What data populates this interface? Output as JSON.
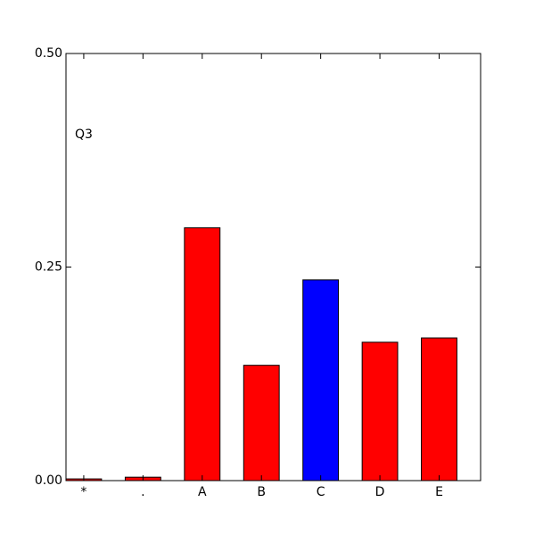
{
  "chart_data": {
    "type": "bar",
    "annotation": "Q3",
    "categories": [
      "*",
      ".",
      "A",
      "B",
      "C",
      "D",
      "E"
    ],
    "values": [
      0.002,
      0.004,
      0.296,
      0.135,
      0.235,
      0.162,
      0.167
    ],
    "colors": [
      "#ff0000",
      "#ff0000",
      "#ff0000",
      "#ff0000",
      "#0000ff",
      "#ff0000",
      "#ff0000"
    ],
    "ylim": [
      0,
      0.5
    ],
    "yticks": [
      {
        "value": 0,
        "label": "0.00"
      },
      {
        "value": 0.25,
        "label": "0.25"
      },
      {
        "value": 0.5,
        "label": "0.50"
      }
    ],
    "grid": false
  }
}
